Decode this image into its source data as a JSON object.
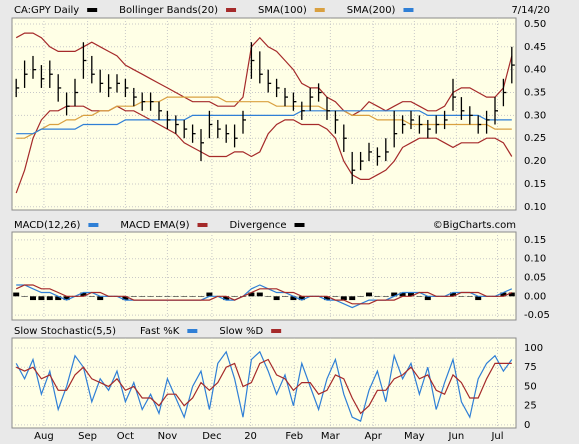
{
  "chart_data": [
    {
      "type": "ohlc",
      "annotation": "7/14/20",
      "xlim": [
        -0.5,
        59.5
      ],
      "ylim": [
        0.093,
        0.513
      ],
      "yticks": [
        {
          "value": 0.1,
          "label": "0.10"
        },
        0.15,
        {
          "value": 0.2,
          "label": "0.20"
        },
        0.25,
        {
          "value": 0.3,
          "label": "0.30"
        },
        0.35,
        {
          "value": 0.4,
          "label": "0.40"
        },
        0.45,
        {
          "value": 0.5,
          "label": "0.50"
        }
      ],
      "grid": true,
      "price": {
        "name": "CA:GPY Daily",
        "color": "#000000",
        "high": [
          0.38,
          0.42,
          0.43,
          0.41,
          0.42,
          0.39,
          0.35,
          0.38,
          0.46,
          0.43,
          0.4,
          0.39,
          0.39,
          0.38,
          0.36,
          0.35,
          0.35,
          0.33,
          0.31,
          0.3,
          0.29,
          0.28,
          0.27,
          0.31,
          0.29,
          0.28,
          0.28,
          0.31,
          0.46,
          0.44,
          0.4,
          0.38,
          0.36,
          0.35,
          0.33,
          0.36,
          0.37,
          0.34,
          0.31,
          0.28,
          0.22,
          0.22,
          0.24,
          0.23,
          0.25,
          0.31,
          0.3,
          0.31,
          0.3,
          0.29,
          0.3,
          0.31,
          0.38,
          0.34,
          0.32,
          0.3,
          0.31,
          0.34,
          0.38,
          0.45
        ],
        "low": [
          0.34,
          0.36,
          0.38,
          0.36,
          0.36,
          0.33,
          0.3,
          0.32,
          0.38,
          0.37,
          0.35,
          0.34,
          0.35,
          0.34,
          0.32,
          0.31,
          0.31,
          0.29,
          0.27,
          0.26,
          0.25,
          0.24,
          0.2,
          0.25,
          0.25,
          0.24,
          0.23,
          0.26,
          0.38,
          0.37,
          0.35,
          0.34,
          0.32,
          0.31,
          0.29,
          0.31,
          0.33,
          0.29,
          0.26,
          0.22,
          0.15,
          0.18,
          0.2,
          0.19,
          0.2,
          0.23,
          0.26,
          0.27,
          0.26,
          0.25,
          0.26,
          0.27,
          0.31,
          0.29,
          0.28,
          0.26,
          0.26,
          0.28,
          0.32,
          0.37
        ],
        "close": [
          0.36,
          0.39,
          0.4,
          0.38,
          0.39,
          0.36,
          0.32,
          0.35,
          0.42,
          0.39,
          0.37,
          0.36,
          0.37,
          0.36,
          0.34,
          0.33,
          0.33,
          0.31,
          0.29,
          0.28,
          0.27,
          0.26,
          0.24,
          0.28,
          0.27,
          0.26,
          0.25,
          0.29,
          0.42,
          0.39,
          0.37,
          0.36,
          0.34,
          0.33,
          0.31,
          0.34,
          0.35,
          0.31,
          0.29,
          0.25,
          0.18,
          0.2,
          0.22,
          0.21,
          0.22,
          0.26,
          0.28,
          0.29,
          0.28,
          0.27,
          0.28,
          0.29,
          0.34,
          0.31,
          0.3,
          0.28,
          0.29,
          0.31,
          0.35,
          0.41
        ]
      },
      "bands": {
        "name": "Bollinger Bands(20)",
        "color": "#a52a2a",
        "upper": [
          0.47,
          0.48,
          0.48,
          0.47,
          0.45,
          0.44,
          0.44,
          0.44,
          0.45,
          0.46,
          0.45,
          0.44,
          0.43,
          0.41,
          0.4,
          0.39,
          0.38,
          0.37,
          0.36,
          0.35,
          0.34,
          0.33,
          0.33,
          0.33,
          0.32,
          0.32,
          0.32,
          0.34,
          0.45,
          0.47,
          0.45,
          0.44,
          0.42,
          0.4,
          0.37,
          0.36,
          0.36,
          0.34,
          0.33,
          0.31,
          0.3,
          0.31,
          0.33,
          0.32,
          0.31,
          0.32,
          0.33,
          0.33,
          0.32,
          0.31,
          0.31,
          0.32,
          0.35,
          0.36,
          0.36,
          0.35,
          0.34,
          0.34,
          0.36,
          0.43
        ],
        "lower": [
          0.13,
          0.18,
          0.25,
          0.29,
          0.31,
          0.31,
          0.32,
          0.32,
          0.32,
          0.31,
          0.31,
          0.31,
          0.32,
          0.31,
          0.31,
          0.3,
          0.29,
          0.28,
          0.27,
          0.26,
          0.24,
          0.23,
          0.22,
          0.21,
          0.21,
          0.21,
          0.22,
          0.22,
          0.21,
          0.22,
          0.26,
          0.28,
          0.29,
          0.29,
          0.28,
          0.28,
          0.28,
          0.27,
          0.25,
          0.2,
          0.17,
          0.16,
          0.16,
          0.17,
          0.18,
          0.2,
          0.23,
          0.24,
          0.25,
          0.25,
          0.25,
          0.24,
          0.23,
          0.24,
          0.24,
          0.24,
          0.25,
          0.25,
          0.24,
          0.21
        ]
      },
      "series": [
        {
          "name": "SMA(100)",
          "color": "#d9a040",
          "values": [
            0.25,
            0.25,
            0.26,
            0.27,
            0.28,
            0.28,
            0.29,
            0.29,
            0.3,
            0.3,
            0.31,
            0.31,
            0.32,
            0.32,
            0.32,
            0.33,
            0.33,
            0.33,
            0.34,
            0.34,
            0.34,
            0.34,
            0.34,
            0.34,
            0.34,
            0.33,
            0.33,
            0.33,
            0.33,
            0.33,
            0.33,
            0.32,
            0.32,
            0.32,
            0.32,
            0.32,
            0.32,
            0.31,
            0.31,
            0.31,
            0.3,
            0.3,
            0.3,
            0.29,
            0.29,
            0.29,
            0.29,
            0.28,
            0.28,
            0.28,
            0.28,
            0.28,
            0.28,
            0.28,
            0.28,
            0.28,
            0.28,
            0.27,
            0.27,
            0.27
          ]
        },
        {
          "name": "SMA(200)",
          "color": "#2f7fd6",
          "values": [
            0.26,
            0.26,
            0.26,
            0.27,
            0.27,
            0.27,
            0.27,
            0.27,
            0.28,
            0.28,
            0.28,
            0.28,
            0.28,
            0.29,
            0.29,
            0.29,
            0.29,
            0.29,
            0.29,
            0.29,
            0.29,
            0.3,
            0.3,
            0.3,
            0.3,
            0.3,
            0.3,
            0.3,
            0.3,
            0.3,
            0.3,
            0.3,
            0.3,
            0.3,
            0.31,
            0.31,
            0.31,
            0.31,
            0.31,
            0.31,
            0.31,
            0.31,
            0.31,
            0.31,
            0.31,
            0.31,
            0.31,
            0.31,
            0.31,
            0.3,
            0.3,
            0.3,
            0.3,
            0.3,
            0.3,
            0.3,
            0.29,
            0.29,
            0.29,
            0.29
          ]
        }
      ]
    },
    {
      "type": "macd",
      "annotation": "©BigCharts.com",
      "xlim": [
        -0.5,
        59.5
      ],
      "ylim": [
        -0.063,
        0.171
      ],
      "yticks": [
        -0.05,
        {
          "value": 0,
          "label": "0.00"
        },
        0.05,
        {
          "value": 0.1,
          "label": "0.10"
        },
        0.15
      ],
      "grid": true,
      "series": [
        {
          "name": "MACD(12,26)",
          "color": "#2f7fd6",
          "values": [
            0.03,
            0.03,
            0.02,
            0.01,
            0.01,
            0.0,
            -0.01,
            0.0,
            0.01,
            0.01,
            0.0,
            0.0,
            0.0,
            -0.01,
            -0.01,
            -0.01,
            -0.01,
            -0.01,
            -0.01,
            -0.01,
            -0.01,
            -0.01,
            -0.01,
            0.0,
            0.0,
            -0.01,
            -0.01,
            0.0,
            0.02,
            0.03,
            0.02,
            0.01,
            0.01,
            0.0,
            -0.01,
            0.0,
            0.0,
            -0.01,
            -0.01,
            -0.02,
            -0.03,
            -0.02,
            -0.01,
            -0.01,
            -0.01,
            0.0,
            0.01,
            0.01,
            0.01,
            0.0,
            0.0,
            0.0,
            0.01,
            0.01,
            0.01,
            0.0,
            0.0,
            0.0,
            0.01,
            0.02
          ]
        },
        {
          "name": "MACD EMA(9)",
          "color": "#a52a2a",
          "values": [
            0.02,
            0.03,
            0.03,
            0.02,
            0.02,
            0.01,
            0.0,
            0.0,
            0.0,
            0.01,
            0.01,
            0.0,
            0.0,
            0.0,
            -0.01,
            -0.01,
            -0.01,
            -0.01,
            -0.01,
            -0.01,
            -0.01,
            -0.01,
            -0.01,
            -0.01,
            0.0,
            0.0,
            -0.01,
            0.0,
            0.01,
            0.02,
            0.02,
            0.02,
            0.01,
            0.01,
            0.0,
            0.0,
            0.0,
            0.0,
            -0.01,
            -0.01,
            -0.02,
            -0.02,
            -0.02,
            -0.01,
            -0.01,
            -0.01,
            0.0,
            0.0,
            0.01,
            0.01,
            0.0,
            0.0,
            0.0,
            0.01,
            0.01,
            0.01,
            0.0,
            0.0,
            0.0,
            0.01
          ]
        }
      ],
      "divergence": {
        "name": "Divergence",
        "color": "#000000",
        "values": [
          0.01,
          0,
          -0.01,
          -0.01,
          -0.01,
          -0.01,
          -0.01,
          0,
          0.01,
          0,
          -0.01,
          0,
          0,
          -0.01,
          0,
          0,
          0,
          0,
          0,
          0,
          0,
          0,
          0,
          0.01,
          0,
          -0.01,
          0,
          0,
          0.01,
          0.01,
          0,
          -0.01,
          0,
          -0.01,
          -0.01,
          0,
          0,
          -0.01,
          0,
          -0.01,
          -0.01,
          0,
          0.01,
          0,
          0,
          0.01,
          0.01,
          0.01,
          0,
          -0.01,
          0,
          0,
          0.01,
          0,
          0,
          -0.01,
          0,
          0,
          0.01,
          0.01
        ]
      }
    },
    {
      "type": "line",
      "title": "Slow Stochastic(5,5)",
      "xlim": [
        -0.5,
        59.5
      ],
      "ylim": [
        -4,
        113
      ],
      "yticks": [
        0,
        25,
        50,
        75,
        100
      ],
      "xticks": [
        {
          "value": 3.3,
          "label": "Aug"
        },
        {
          "value": 8.5,
          "label": "Sep"
        },
        {
          "value": 13,
          "label": "Oct"
        },
        {
          "value": 18,
          "label": "Nov"
        },
        {
          "value": 23.3,
          "label": "Dec"
        },
        {
          "value": 27.9,
          "label": "20"
        },
        {
          "value": 33.1,
          "label": "Feb"
        },
        {
          "value": 37.4,
          "label": "Mar"
        },
        {
          "value": 42.5,
          "label": "Apr"
        },
        {
          "value": 47.4,
          "label": "May"
        },
        {
          "value": 52.4,
          "label": "Jun"
        },
        {
          "value": 57.3,
          "label": "Jul"
        }
      ],
      "grid": true,
      "series": [
        {
          "name": "Fast %K",
          "color": "#2f7fd6",
          "values": [
            80,
            60,
            85,
            40,
            70,
            20,
            50,
            90,
            75,
            30,
            60,
            45,
            70,
            30,
            55,
            20,
            40,
            15,
            60,
            35,
            10,
            50,
            70,
            20,
            80,
            95,
            60,
            10,
            85,
            95,
            70,
            40,
            65,
            25,
            80,
            50,
            20,
            60,
            85,
            40,
            10,
            5,
            45,
            70,
            30,
            90,
            60,
            80,
            40,
            75,
            20,
            55,
            85,
            30,
            10,
            60,
            80,
            90,
            70,
            85
          ]
        },
        {
          "name": "Slow %D",
          "color": "#a52a2a",
          "values": [
            75,
            70,
            75,
            60,
            65,
            45,
            45,
            65,
            75,
            60,
            55,
            50,
            60,
            45,
            50,
            35,
            35,
            25,
            40,
            40,
            25,
            35,
            55,
            45,
            55,
            75,
            80,
            50,
            55,
            80,
            85,
            65,
            60,
            45,
            55,
            55,
            40,
            45,
            65,
            60,
            35,
            15,
            25,
            45,
            45,
            60,
            65,
            75,
            60,
            65,
            45,
            40,
            65,
            55,
            35,
            35,
            60,
            80,
            80,
            80
          ]
        }
      ]
    }
  ]
}
